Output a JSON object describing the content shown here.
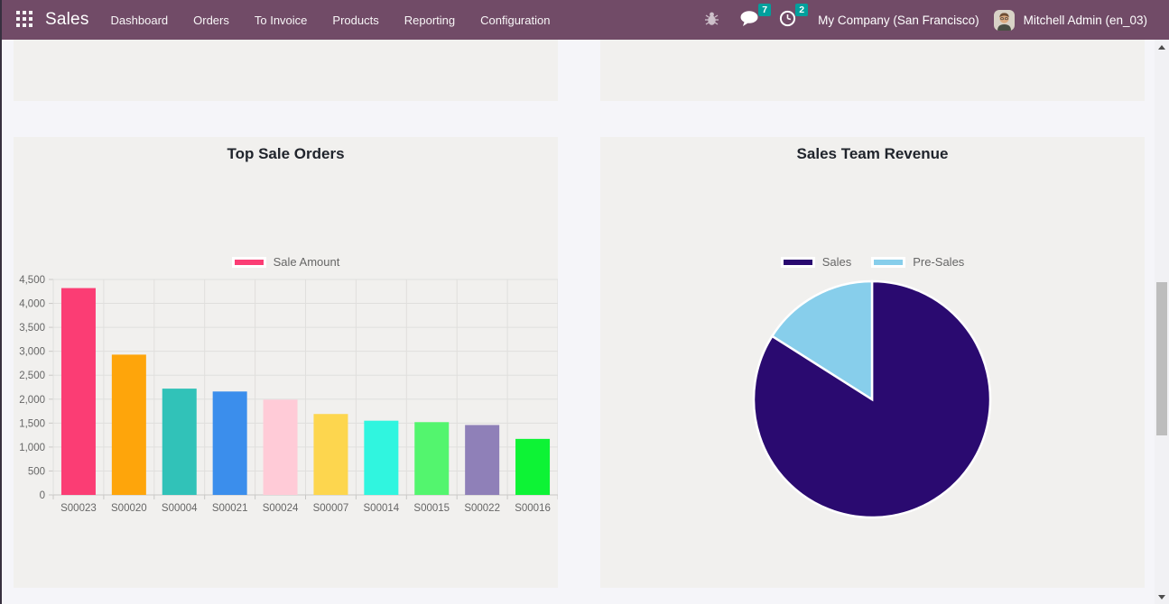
{
  "app": {
    "name": "Sales",
    "menus": [
      "Dashboard",
      "Orders",
      "To Invoice",
      "Products",
      "Reporting",
      "Configuration"
    ],
    "systray": {
      "messages_count": "7",
      "activities_count": "2",
      "company": "My Company (San Francisco)",
      "user": "Mitchell Admin (en_03)"
    }
  },
  "icons": {
    "apps": "grid-icon",
    "debug": "bug-icon",
    "messages": "speech-bubble-icon",
    "activities": "clock-icon"
  },
  "colors": {
    "navbar": "#714b67",
    "badge": "#00a09d",
    "card_bg": "#f1f0ee",
    "page_bg": "#f5f5f9",
    "grid_line": "#e0dfdd",
    "axis_line": "#c9c8c6",
    "axis_text": "#666666",
    "title_text": "#20242c"
  },
  "chart_data": [
    {
      "type": "bar",
      "title": "Top Sale Orders",
      "categories": [
        "S00023",
        "S00020",
        "S00004",
        "S00021",
        "S00024",
        "S00007",
        "S00014",
        "S00015",
        "S00022",
        "S00016"
      ],
      "series": [
        {
          "name": "Sale Amount",
          "values": [
            4320,
            2930,
            2220,
            2160,
            1990,
            1690,
            1550,
            1520,
            1460,
            1170
          ]
        }
      ],
      "bar_colors": [
        "#fb3d74",
        "#fea50b",
        "#31c2b8",
        "#3b8eec",
        "#ffcbd7",
        "#fdd64e",
        "#30f5df",
        "#53f56e",
        "#8f80b8",
        "#0df335"
      ],
      "legend_color": "#fb3d74",
      "xlabel": "",
      "ylabel": "",
      "ylim": [
        0,
        4500
      ],
      "ytick_step": 500,
      "grid": true,
      "legend_position": "top"
    },
    {
      "type": "pie",
      "title": "Sales Team Revenue",
      "labels": [
        "Sales",
        "Pre-Sales"
      ],
      "values_pct": [
        84,
        16
      ],
      "colors": [
        "#2a0a70",
        "#87ceeb"
      ],
      "legend_position": "top"
    }
  ]
}
